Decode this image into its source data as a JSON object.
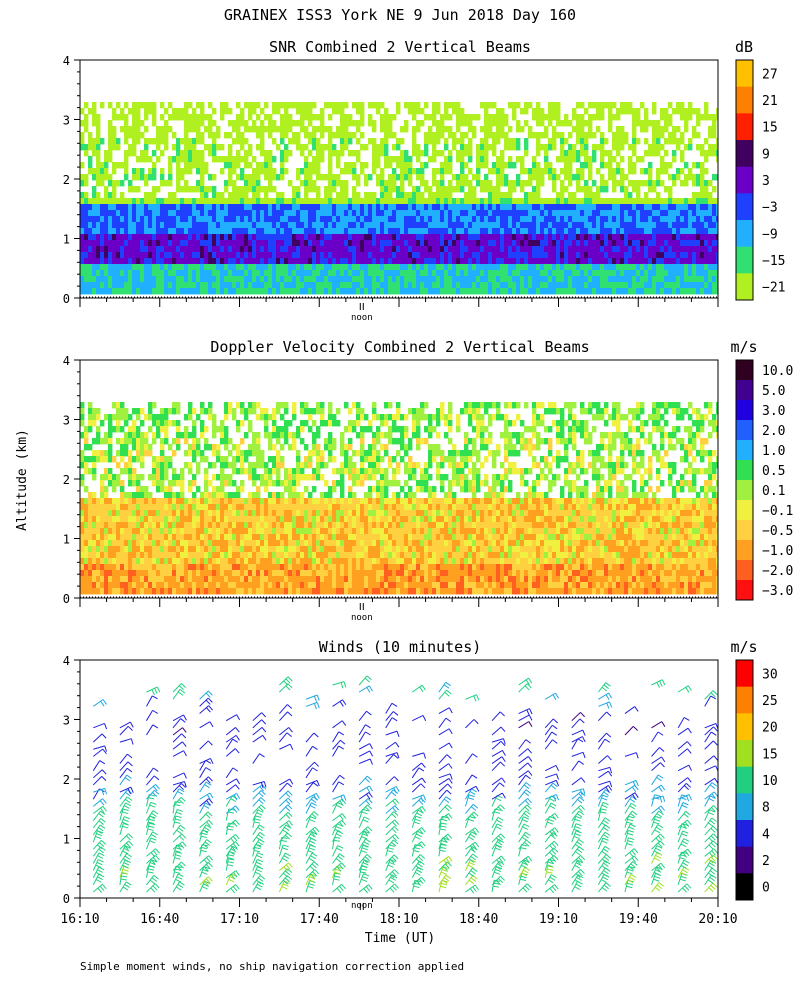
{
  "header": {
    "title": "GRAINEX ISS3 York NE   9 Jun 2018 Day 160"
  },
  "shared": {
    "ylabel": "Altitude (km)",
    "xlabel": "Time (UT)",
    "noon_label": "noon",
    "footnote": "Simple moment winds, no ship navigation correction applied"
  },
  "chart_data": [
    {
      "id": "snr",
      "type": "heatmap",
      "title": "SNR Combined 2 Vertical Beams",
      "ylabel": "Altitude (km)",
      "ylim": [
        0,
        4
      ],
      "yticks": [
        "0",
        "1",
        "2",
        "3",
        "4"
      ],
      "xlim_minutes_utc": [
        970,
        1210
      ],
      "noon_minute": 1076,
      "colorbar": {
        "unit": "dB",
        "labels": [
          "27",
          "21",
          "15",
          "9",
          "3",
          "−3",
          "−9",
          "−15",
          "−21"
        ],
        "colors": [
          "#ffc000",
          "#ff8000",
          "#ff2000",
          "#400060",
          "#6a00c8",
          "#2040ff",
          "#20b0ff",
          "#30e070",
          "#b0f020"
        ]
      },
      "layers": [
        {
          "alt_km": [
            0.1,
            0.6
          ],
          "value_db": -9
        },
        {
          "alt_km": [
            0.6,
            1.1
          ],
          "value_db": 5
        },
        {
          "alt_km": [
            1.1,
            1.6
          ],
          "value_db": -3
        },
        {
          "alt_km": [
            1.6,
            2.7
          ],
          "value_db": -18
        },
        {
          "alt_km": [
            2.7,
            3.3
          ],
          "value_db": -20
        }
      ]
    },
    {
      "id": "doppler",
      "type": "heatmap",
      "title": "Doppler Velocity Combined 2 Vertical Beams",
      "ylabel": "Altitude (km)",
      "ylim": [
        0,
        4
      ],
      "yticks": [
        "0",
        "1",
        "2",
        "3",
        "4"
      ],
      "xlim_minutes_utc": [
        970,
        1210
      ],
      "noon_minute": 1076,
      "colorbar": {
        "unit": "m/s",
        "labels": [
          "10.0",
          "5.0",
          "3.0",
          "2.0",
          "1.0",
          "0.5",
          "0.1",
          "−0.1",
          "−0.5",
          "−1.0",
          "−2.0",
          "−3.0"
        ],
        "colors": [
          "#300020",
          "#400090",
          "#2000e0",
          "#2060ff",
          "#20b0ff",
          "#30e050",
          "#a0f040",
          "#f0f040",
          "#ffd040",
          "#ffa020",
          "#ff6020",
          "#ff1010"
        ]
      },
      "layers": [
        {
          "alt_km": [
            0.1,
            0.6
          ],
          "value_ms": -0.7
        },
        {
          "alt_km": [
            0.6,
            1.7
          ],
          "value_ms": -0.3
        },
        {
          "alt_km": [
            1.7,
            2.7
          ],
          "value_ms": 0.3
        },
        {
          "alt_km": [
            2.7,
            3.3
          ],
          "value_ms": 0.4
        }
      ]
    },
    {
      "id": "winds",
      "type": "scatter",
      "subtype": "wind-barbs",
      "title": "Winds (10 minutes)",
      "ylabel": "Altitude (km)",
      "xlabel": "Time (UT)",
      "ylim": [
        0,
        4
      ],
      "yticks": [
        "0",
        "1",
        "2",
        "3",
        "4"
      ],
      "xlim_minutes_utc": [
        970,
        1210
      ],
      "xticks": [
        "16:10",
        "16:40",
        "17:10",
        "17:40",
        "18:10",
        "18:40",
        "19:10",
        "19:40",
        "20:10"
      ],
      "noon_minute": 1076,
      "barb_interval_min": 10,
      "colorbar": {
        "unit": "m/s",
        "labels": [
          "30",
          "25",
          "20",
          "15",
          "10",
          "8",
          "4",
          "2",
          "0"
        ],
        "colors": [
          "#ff0000",
          "#ff8000",
          "#ffc000",
          "#a0e020",
          "#20d080",
          "#20a8e0",
          "#2020e0",
          "#400080",
          "#000000"
        ]
      },
      "speed_profile": [
        {
          "alt_km": 0.5,
          "speed_ms": 14
        },
        {
          "alt_km": 1.2,
          "speed_ms": 12
        },
        {
          "alt_km": 2.0,
          "speed_ms": 6
        },
        {
          "alt_km": 3.0,
          "speed_ms": 5
        },
        {
          "alt_km": 3.5,
          "speed_ms": 12
        }
      ]
    }
  ]
}
